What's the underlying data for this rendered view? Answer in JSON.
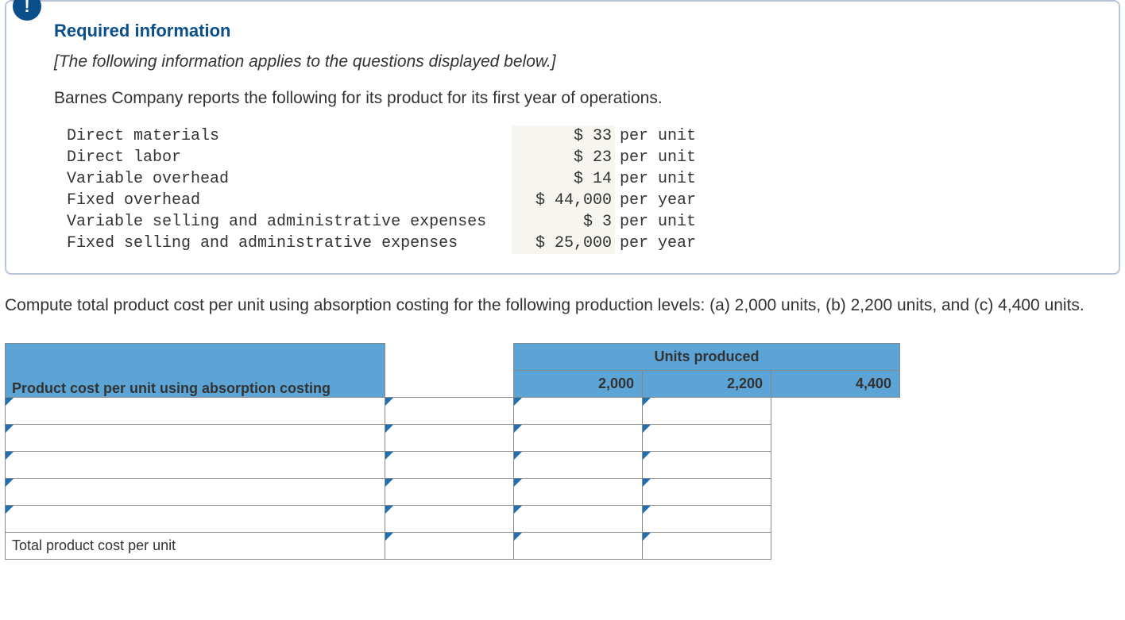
{
  "info": {
    "badge_glyph": "!",
    "title": "Required information",
    "subtitle": "[The following information applies to the questions displayed below.]",
    "intro": "Barnes Company reports the following for its product for its first year of operations.",
    "rows": [
      {
        "label": "Direct materials",
        "value": "$ 33",
        "per": "per unit"
      },
      {
        "label": "Direct labor",
        "value": "$ 23",
        "per": "per unit"
      },
      {
        "label": "Variable overhead",
        "value": "$ 14",
        "per": "per unit"
      },
      {
        "label": "Fixed overhead",
        "value": "$ 44,000",
        "per": "per year"
      },
      {
        "label": "Variable selling and administrative expenses",
        "value": "$ 3",
        "per": "per unit"
      },
      {
        "label": "Fixed selling and administrative expenses",
        "value": "$ 25,000",
        "per": "per year"
      }
    ]
  },
  "question": "Compute total product cost per unit using absorption costing for the following production levels: (a) 2,000 units, (b) 2,200 units, and (c) 4,400 units.",
  "answer_table": {
    "units_header": "Units produced",
    "row_header": "Product cost per unit using absorption costing",
    "columns": [
      "2,000",
      "2,200",
      "4,400"
    ],
    "input_rows": 5,
    "total_label": "Total product cost per unit",
    "colors": {
      "header_bg": "#5da4d6",
      "triangle": "#1f6fb2",
      "border": "#888888"
    }
  }
}
